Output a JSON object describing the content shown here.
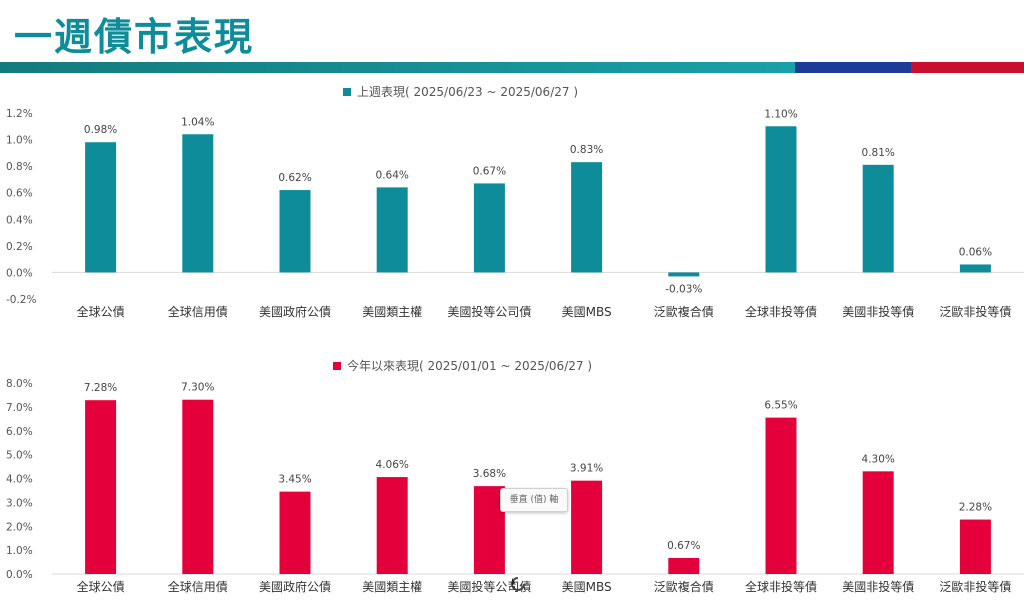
{
  "page": {
    "title": "一週債市表現"
  },
  "chart_data": [
    {
      "type": "bar",
      "legend": "上週表現( 2025/06/23 ~ 2025/06/27 )",
      "legend_position": "top-center",
      "color": "#0e8c99",
      "categories": [
        "全球公債",
        "全球信用債",
        "美國政府公債",
        "美國類主權",
        "美國投等公司債",
        "美國MBS",
        "泛歐複合債",
        "全球非投等債",
        "美國非投等債",
        "泛歐非投等債"
      ],
      "values": [
        0.98,
        1.04,
        0.62,
        0.64,
        0.67,
        0.83,
        -0.03,
        1.1,
        0.81,
        0.06
      ],
      "value_labels": [
        "0.98%",
        "1.04%",
        "0.62%",
        "0.64%",
        "0.67%",
        "0.83%",
        "-0.03%",
        "1.10%",
        "0.81%",
        "0.06%"
      ],
      "ylim": [
        -0.2,
        1.2
      ],
      "yticks": [
        "1.2%",
        "1.0%",
        "0.8%",
        "0.6%",
        "0.4%",
        "0.2%",
        "0.0%",
        "-0.2%"
      ],
      "ytick_values": [
        1.2,
        1.0,
        0.8,
        0.6,
        0.4,
        0.2,
        0.0,
        -0.2
      ],
      "grid": false
    },
    {
      "type": "bar",
      "legend": "今年以來表現( 2025/01/01 ~ 2025/06/27 )",
      "legend_position": "top-center",
      "color": "#e4003b",
      "categories": [
        "全球公債",
        "全球信用債",
        "美國政府公債",
        "美國類主權",
        "美國投等公司債",
        "美國MBS",
        "泛歐複合債",
        "全球非投等債",
        "美國非投等債",
        "泛歐非投等債"
      ],
      "values": [
        7.28,
        7.3,
        3.45,
        4.06,
        3.68,
        3.91,
        0.67,
        6.55,
        4.3,
        2.28
      ],
      "value_labels": [
        "7.28%",
        "7.30%",
        "3.45%",
        "4.06%",
        "3.68%",
        "3.91%",
        "0.67%",
        "6.55%",
        "4.30%",
        "2.28%"
      ],
      "ylim": [
        0,
        8.0
      ],
      "yticks": [
        "8.0%",
        "7.0%",
        "6.0%",
        "5.0%",
        "4.0%",
        "3.0%",
        "2.0%",
        "1.0%",
        "0.0%"
      ],
      "ytick_values": [
        8.0,
        7.0,
        6.0,
        5.0,
        4.0,
        3.0,
        2.0,
        1.0,
        0.0
      ],
      "grid": false
    }
  ],
  "tooltip": {
    "text": "垂直 (值) 軸"
  }
}
